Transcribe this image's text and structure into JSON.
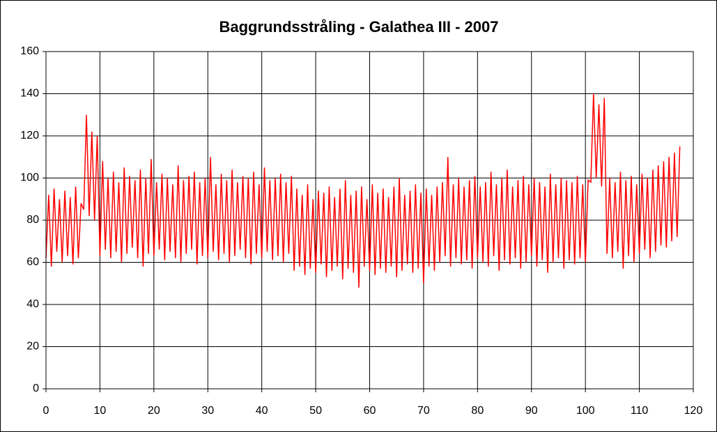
{
  "chart_data": {
    "type": "line",
    "title": "Baggrundsstråling - Galathea III - 2007",
    "color": "#ff0000",
    "grid": true,
    "xlim": [
      0,
      120
    ],
    "xticks": [
      0,
      10,
      20,
      30,
      40,
      50,
      60,
      70,
      80,
      90,
      100,
      110,
      120
    ],
    "ylim": [
      0,
      160
    ],
    "yticks": [
      0,
      20,
      40,
      60,
      80,
      100,
      120,
      140,
      160
    ],
    "x": [
      0,
      0.5,
      1,
      1.5,
      2,
      2.5,
      3,
      3.5,
      4,
      4.5,
      5,
      5.5,
      6,
      6.5,
      7,
      7.5,
      8,
      8.5,
      9,
      9.5,
      10,
      10.5,
      11,
      11.5,
      12,
      12.5,
      13,
      13.5,
      14,
      14.5,
      15,
      15.5,
      16,
      16.5,
      17,
      17.5,
      18,
      18.5,
      19,
      19.5,
      20,
      20.5,
      21,
      21.5,
      22,
      22.5,
      23,
      23.5,
      24,
      24.5,
      25,
      25.5,
      26,
      26.5,
      27,
      27.5,
      28,
      28.5,
      29,
      29.5,
      30,
      30.5,
      31,
      31.5,
      32,
      32.5,
      33,
      33.5,
      34,
      34.5,
      35,
      35.5,
      36,
      36.5,
      37,
      37.5,
      38,
      38.5,
      39,
      39.5,
      40,
      40.5,
      41,
      41.5,
      42,
      42.5,
      43,
      43.5,
      44,
      44.5,
      45,
      45.5,
      46,
      46.5,
      47,
      47.5,
      48,
      48.5,
      49,
      49.5,
      50,
      50.5,
      51,
      51.5,
      52,
      52.5,
      53,
      53.5,
      54,
      54.5,
      55,
      55.5,
      56,
      56.5,
      57,
      57.5,
      58,
      58.5,
      59,
      59.5,
      60,
      60.5,
      61,
      61.5,
      62,
      62.5,
      63,
      63.5,
      64,
      64.5,
      65,
      65.5,
      66,
      66.5,
      67,
      67.5,
      68,
      68.5,
      69,
      69.5,
      70,
      70.5,
      71,
      71.5,
      72,
      72.5,
      73,
      73.5,
      74,
      74.5,
      75,
      75.5,
      76,
      76.5,
      77,
      77.5,
      78,
      78.5,
      79,
      79.5,
      80,
      80.5,
      81,
      81.5,
      82,
      82.5,
      83,
      83.5,
      84,
      84.5,
      85,
      85.5,
      86,
      86.5,
      87,
      87.5,
      88,
      88.5,
      89,
      89.5,
      90,
      90.5,
      91,
      91.5,
      92,
      92.5,
      93,
      93.5,
      94,
      94.5,
      95,
      95.5,
      96,
      96.5,
      97,
      97.5,
      98,
      98.5,
      99,
      99.5,
      100,
      100.5,
      101,
      101.5,
      102,
      102.5,
      103,
      103.5,
      104,
      104.5,
      105,
      105.5,
      106,
      106.5,
      107,
      107.5,
      108,
      108.5,
      109,
      109.5,
      110,
      110.5,
      111,
      111.5,
      112,
      112.5,
      113,
      113.5,
      114,
      114.5,
      115,
      115.5,
      116,
      116.5,
      117,
      117.5
    ],
    "values": [
      62,
      92,
      58,
      95,
      65,
      90,
      60,
      94,
      63,
      91,
      59,
      96,
      62,
      88,
      85,
      130,
      82,
      122,
      80,
      120,
      63,
      108,
      66,
      100,
      62,
      103,
      65,
      98,
      60,
      105,
      64,
      101,
      67,
      99,
      62,
      104,
      58,
      100,
      64,
      109,
      63,
      98,
      66,
      102,
      61,
      100,
      65,
      97,
      62,
      106,
      60,
      99,
      64,
      101,
      66,
      103,
      59,
      98,
      63,
      100,
      62,
      110,
      65,
      97,
      61,
      102,
      64,
      99,
      60,
      104,
      63,
      98,
      66,
      101,
      62,
      100,
      59,
      103,
      64,
      97,
      62,
      105,
      65,
      99,
      61,
      100,
      63,
      102,
      60,
      98,
      64,
      101,
      56,
      95,
      58,
      92,
      54,
      97,
      57,
      90,
      55,
      94,
      59,
      93,
      53,
      96,
      56,
      91,
      58,
      95,
      52,
      99,
      57,
      92,
      55,
      94,
      48,
      96,
      58,
      90,
      56,
      97,
      54,
      93,
      57,
      95,
      55,
      91,
      58,
      96,
      53,
      100,
      56,
      92,
      59,
      94,
      55,
      97,
      57,
      93,
      50,
      95,
      58,
      92,
      56,
      96,
      60,
      98,
      63,
      110,
      58,
      97,
      62,
      100,
      59,
      96,
      61,
      99,
      57,
      101,
      62,
      96,
      60,
      98,
      58,
      103,
      63,
      97,
      56,
      100,
      61,
      104,
      59,
      96,
      62,
      99,
      57,
      101,
      60,
      97,
      63,
      100,
      58,
      98,
      61,
      96,
      55,
      102,
      60,
      97,
      62,
      100,
      57,
      99,
      61,
      98,
      59,
      101,
      62,
      97,
      60,
      99,
      98,
      140,
      100,
      135,
      96,
      138,
      64,
      100,
      62,
      98,
      65,
      103,
      57,
      99,
      63,
      101,
      60,
      97,
      64,
      102,
      66,
      100,
      62,
      104,
      65,
      106,
      68,
      108,
      67,
      110,
      70,
      112,
      72,
      115
    ]
  }
}
